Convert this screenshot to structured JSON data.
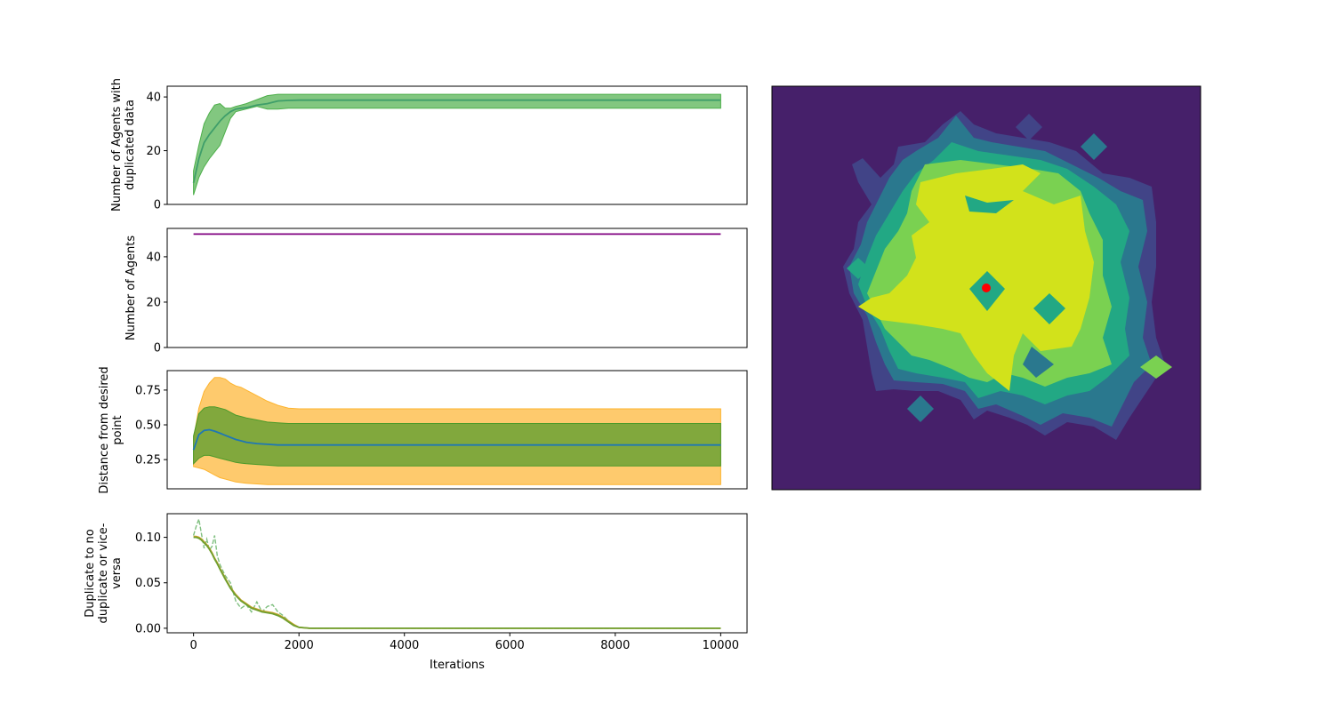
{
  "chart_data": [
    {
      "type": "line",
      "ylabel": [
        "Number of Agents with",
        "duplicated data"
      ],
      "xlim": [
        -500,
        10500
      ],
      "ylim": [
        0,
        44
      ],
      "yticks": [
        0,
        20,
        40
      ],
      "x": [
        0,
        100,
        200,
        300,
        400,
        500,
        600,
        700,
        800,
        900,
        1000,
        1200,
        1400,
        1600,
        1800,
        2000,
        3000,
        5000,
        8000,
        10000
      ],
      "series": [
        {
          "role": "mean",
          "color": "#1f77b4",
          "values": [
            8,
            17,
            23,
            26,
            28.5,
            31,
            33,
            34.5,
            35.5,
            35.8,
            36,
            37,
            37.5,
            38.5,
            38.7,
            38.8,
            38.8,
            38.8,
            38.8,
            38.8
          ]
        },
        {
          "role": "band",
          "color": "#4daf4a",
          "lower": [
            3.5,
            10,
            14,
            17,
            19.5,
            22,
            27,
            32,
            34.5,
            35,
            35.5,
            36.5,
            35.5,
            35.5,
            35.8,
            35.8,
            35.8,
            35.8,
            35.8,
            35.8
          ],
          "upper": [
            12.5,
            22,
            30,
            34,
            37,
            37.5,
            35.8,
            35.8,
            36.5,
            37,
            37.5,
            39,
            40.5,
            41,
            41,
            41,
            41,
            41,
            41,
            41
          ]
        }
      ]
    },
    {
      "type": "line",
      "ylabel": [
        "Number of Agents"
      ],
      "xlim": [
        -500,
        10500
      ],
      "ylim": [
        0,
        52.5
      ],
      "yticks": [
        0,
        20,
        40
      ],
      "x": [
        0,
        10000
      ],
      "series": [
        {
          "role": "mean",
          "color": "#800080",
          "values": [
            50,
            50
          ]
        }
      ]
    },
    {
      "type": "line",
      "ylabel": [
        "Distance from desired",
        "point"
      ],
      "xlim": [
        -500,
        10500
      ],
      "ylim": [
        0.04,
        0.89
      ],
      "yticks": [
        0.25,
        0.5,
        0.75
      ],
      "x": [
        0,
        100,
        200,
        300,
        400,
        500,
        600,
        700,
        800,
        900,
        1000,
        1200,
        1400,
        1600,
        1800,
        2000,
        3000,
        5000,
        8000,
        10000
      ],
      "series": [
        {
          "role": "band",
          "color": "#fdb42f",
          "lower": [
            0.2,
            0.19,
            0.18,
            0.16,
            0.14,
            0.12,
            0.11,
            0.1,
            0.09,
            0.085,
            0.08,
            0.075,
            0.07,
            0.07,
            0.07,
            0.07,
            0.07,
            0.07,
            0.07,
            0.07
          ],
          "upper": [
            0.4,
            0.62,
            0.74,
            0.8,
            0.84,
            0.84,
            0.83,
            0.8,
            0.78,
            0.77,
            0.75,
            0.71,
            0.67,
            0.64,
            0.62,
            0.615,
            0.615,
            0.615,
            0.615,
            0.615
          ]
        },
        {
          "role": "band",
          "color": "#4c9a2a",
          "lower": [
            0.22,
            0.26,
            0.28,
            0.28,
            0.27,
            0.26,
            0.25,
            0.24,
            0.23,
            0.225,
            0.22,
            0.215,
            0.21,
            0.205,
            0.205,
            0.205,
            0.205,
            0.205,
            0.205,
            0.205
          ],
          "upper": [
            0.42,
            0.58,
            0.62,
            0.63,
            0.63,
            0.62,
            0.61,
            0.59,
            0.57,
            0.56,
            0.55,
            0.535,
            0.52,
            0.515,
            0.51,
            0.51,
            0.51,
            0.51,
            0.51,
            0.51
          ]
        },
        {
          "role": "mean",
          "color": "#1f77b4",
          "values": [
            0.32,
            0.43,
            0.46,
            0.465,
            0.455,
            0.44,
            0.425,
            0.41,
            0.395,
            0.385,
            0.375,
            0.365,
            0.36,
            0.355,
            0.355,
            0.355,
            0.355,
            0.355,
            0.355,
            0.355
          ]
        }
      ]
    },
    {
      "type": "line",
      "ylabel": [
        "Duplicate to no",
        "duplicate or vice-",
        "versa"
      ],
      "xlabel": "Iterations",
      "xlim": [
        -500,
        10500
      ],
      "ylim": [
        -0.005,
        0.126
      ],
      "yticks": [
        0.0,
        0.05,
        0.1
      ],
      "xticks": [
        0,
        2000,
        4000,
        6000,
        8000,
        10000
      ],
      "x": [
        0,
        50,
        100,
        150,
        200,
        250,
        300,
        350,
        400,
        450,
        500,
        600,
        700,
        800,
        900,
        1000,
        1100,
        1200,
        1300,
        1400,
        1500,
        1600,
        1700,
        1800,
        1900,
        2000,
        2200,
        4000,
        10000
      ],
      "series": [
        {
          "role": "raw",
          "color": "#7fbf7f",
          "dashed": true,
          "values": [
            0.102,
            0.112,
            0.12,
            0.104,
            0.088,
            0.098,
            0.086,
            0.09,
            0.102,
            0.08,
            0.07,
            0.058,
            0.05,
            0.03,
            0.022,
            0.026,
            0.018,
            0.029,
            0.018,
            0.024,
            0.026,
            0.018,
            0.014,
            0.008,
            0.004,
            0.001,
            0.0,
            0.0,
            0.0
          ]
        },
        {
          "role": "smooth",
          "color": "#c9a227",
          "values": [
            0.101,
            0.101,
            0.1,
            0.098,
            0.095,
            0.092,
            0.088,
            0.083,
            0.077,
            0.072,
            0.066,
            0.055,
            0.045,
            0.037,
            0.031,
            0.027,
            0.023,
            0.021,
            0.019,
            0.018,
            0.017,
            0.015,
            0.012,
            0.008,
            0.004,
            0.001,
            0.0,
            0.0,
            0.0
          ]
        },
        {
          "role": "smooth2",
          "color": "#6f9f2f",
          "values": [
            0.1,
            0.1,
            0.099,
            0.097,
            0.094,
            0.091,
            0.087,
            0.082,
            0.076,
            0.071,
            0.065,
            0.054,
            0.044,
            0.036,
            0.03,
            0.026,
            0.022,
            0.02,
            0.018,
            0.017,
            0.016,
            0.014,
            0.011,
            0.007,
            0.003,
            0.001,
            0.0,
            0.0,
            0.0
          ]
        }
      ]
    },
    {
      "type": "heatmap",
      "subtype": "filled-contour",
      "colors": [
        "#46206a",
        "#414487",
        "#2a788e",
        "#22a884",
        "#7ad151",
        "#d2e21b"
      ],
      "marker_color": "#ff0000"
    }
  ]
}
